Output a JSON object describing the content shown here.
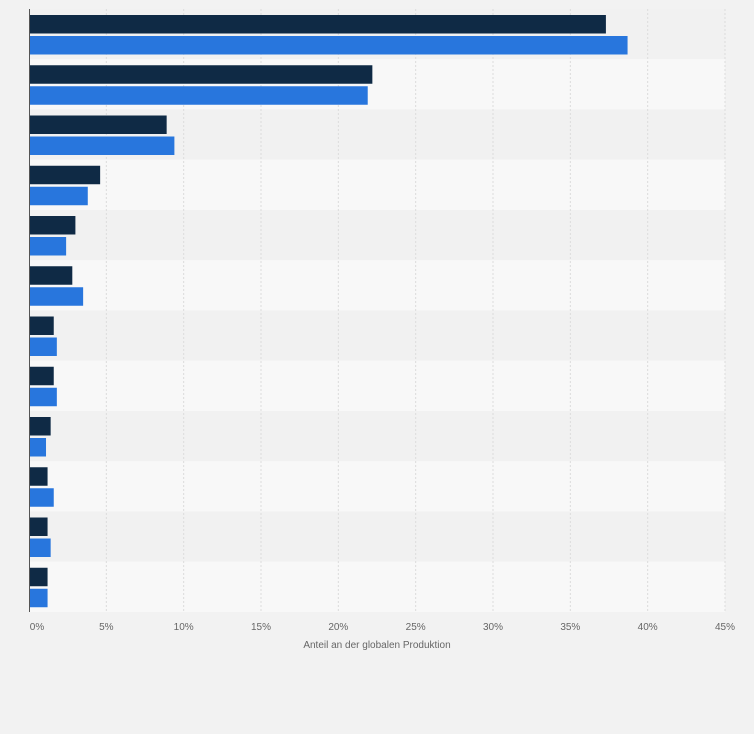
{
  "chart_data": {
    "type": "bar",
    "orientation": "horizontal",
    "title": "",
    "xlabel": "Anteil an der globalen Produktion",
    "ylabel": "",
    "xlim": [
      0,
      45
    ],
    "x_ticks": [
      "0%",
      "5%",
      "10%",
      "15%",
      "20%",
      "25%",
      "30%",
      "35%",
      "40%",
      "45%"
    ],
    "categories": [
      "",
      "",
      "",
      "",
      "",
      "",
      "",
      "",
      "",
      "",
      "",
      ""
    ],
    "series": [
      {
        "name": "",
        "color": "#0f2a45",
        "values": [
          37.3,
          22.2,
          8.9,
          4.6,
          3.0,
          2.8,
          1.6,
          1.6,
          1.4,
          1.2,
          1.2,
          1.2
        ]
      },
      {
        "name": "",
        "color": "#2876dd",
        "values": [
          38.7,
          21.9,
          9.4,
          3.8,
          2.4,
          3.5,
          1.8,
          1.8,
          1.1,
          1.6,
          1.4,
          1.2
        ]
      }
    ],
    "grid": true,
    "legend": "none"
  }
}
